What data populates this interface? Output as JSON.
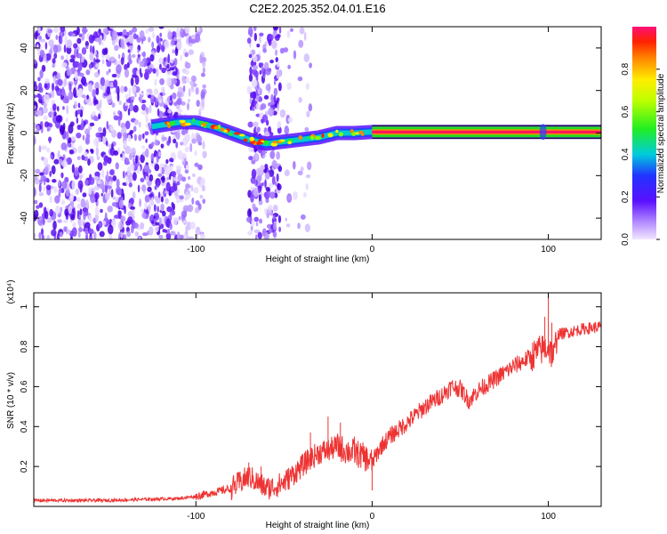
{
  "chart_data": [
    {
      "type": "heatmap",
      "title": "C2E2.2025.352.04.01.E16",
      "xlabel": "Height of straight line (km)",
      "ylabel": "Frequency (Hz)",
      "xlim": [
        -192,
        130
      ],
      "ylim": [
        -50,
        50
      ],
      "xticks": [
        -100,
        0,
        100
      ],
      "yticks": [
        -40,
        -20,
        0,
        20,
        40
      ],
      "colorbar": {
        "label": "Normalized spectral amplitude",
        "range": [
          0,
          1
        ],
        "ticks": [
          "0.0",
          "0.2",
          "0.4",
          "0.6",
          "0.8"
        ]
      },
      "ridge": [
        {
          "x": -125,
          "y": 3
        },
        {
          "x": -110,
          "y": 5
        },
        {
          "x": -100,
          "y": 5
        },
        {
          "x": -90,
          "y": 3
        },
        {
          "x": -80,
          "y": 0
        },
        {
          "x": -70,
          "y": -3
        },
        {
          "x": -60,
          "y": -5
        },
        {
          "x": -50,
          "y": -4
        },
        {
          "x": -40,
          "y": -3
        },
        {
          "x": -30,
          "y": -2
        },
        {
          "x": -20,
          "y": 0
        },
        {
          "x": -10,
          "y": 0
        },
        {
          "x": 0,
          "y": 0.5
        },
        {
          "x": 50,
          "y": 0.5
        },
        {
          "x": 100,
          "y": 0.5
        },
        {
          "x": 130,
          "y": 0.5
        }
      ]
    },
    {
      "type": "line",
      "xlabel": "Height of straight line (km)",
      "ylabel": "SNR (10 * v/v)",
      "y_multiplier": "(x10⁴)",
      "xlim": [
        -192,
        130
      ],
      "ylim": [
        0,
        1.07
      ],
      "xticks": [
        -100,
        0,
        100
      ],
      "yticks": [
        0.2,
        0.4,
        0.6,
        0.8,
        1.0
      ],
      "series": [
        {
          "name": "SNR",
          "color": "#ee3333",
          "points": [
            [
              -192,
              0.03
            ],
            [
              -150,
              0.03
            ],
            [
              -110,
              0.04
            ],
            [
              -100,
              0.05
            ],
            [
              -90,
              0.07
            ],
            [
              -80,
              0.09
            ],
            [
              -75,
              0.12
            ],
            [
              -70,
              0.15
            ],
            [
              -65,
              0.12
            ],
            [
              -60,
              0.09
            ],
            [
              -55,
              0.1
            ],
            [
              -50,
              0.12
            ],
            [
              -45,
              0.16
            ],
            [
              -40,
              0.2
            ],
            [
              -35,
              0.24
            ],
            [
              -30,
              0.27
            ],
            [
              -25,
              0.28
            ],
            [
              -20,
              0.3
            ],
            [
              -15,
              0.28
            ],
            [
              -10,
              0.27
            ],
            [
              -5,
              0.25
            ],
            [
              0,
              0.22
            ],
            [
              5,
              0.3
            ],
            [
              10,
              0.35
            ],
            [
              20,
              0.42
            ],
            [
              30,
              0.5
            ],
            [
              40,
              0.56
            ],
            [
              45,
              0.6
            ],
            [
              50,
              0.59
            ],
            [
              55,
              0.53
            ],
            [
              60,
              0.58
            ],
            [
              70,
              0.64
            ],
            [
              80,
              0.7
            ],
            [
              90,
              0.75
            ],
            [
              95,
              0.78
            ],
            [
              100,
              0.8
            ],
            [
              103,
              0.74
            ],
            [
              105,
              0.86
            ],
            [
              110,
              0.87
            ],
            [
              120,
              0.89
            ],
            [
              130,
              0.9
            ]
          ],
          "spikes": [
            [
              -70,
              0.22
            ],
            [
              -63,
              0.2
            ],
            [
              -40,
              0.25
            ],
            [
              -35,
              0.37
            ],
            [
              -25,
              0.45
            ],
            [
              -18,
              0.42
            ],
            [
              -10,
              0.35
            ],
            [
              0,
              0.08
            ],
            [
              100,
              1.08
            ],
            [
              98,
              0.95
            ],
            [
              102,
              0.92
            ]
          ]
        }
      ]
    }
  ]
}
